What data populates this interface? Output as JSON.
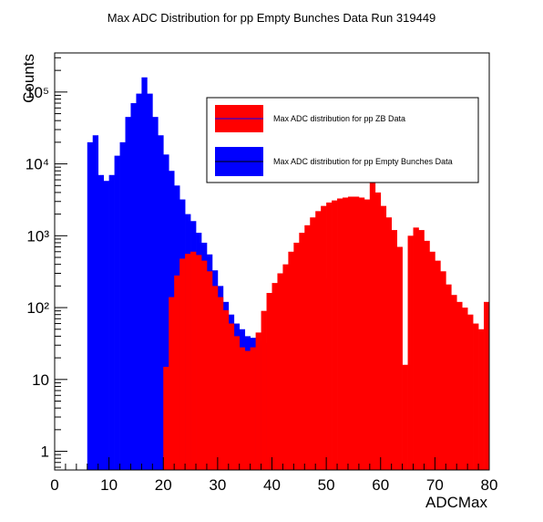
{
  "chart_data": {
    "type": "bar",
    "title": "Max ADC Distribution for pp Empty Bunches Data Run 319449",
    "xlabel": "ADCMax",
    "ylabel": "Counts",
    "xlim": [
      0,
      80
    ],
    "ylim": [
      0.55,
      350000
    ],
    "yscale": "log",
    "grid": false,
    "legend_position": "top-right",
    "x_ticks": [
      0,
      10,
      20,
      30,
      40,
      50,
      60,
      70,
      80
    ],
    "x_tick_labels": [
      "0",
      "10",
      "20",
      "30",
      "40",
      "50",
      "60",
      "70",
      "80"
    ],
    "y_ticks": [
      1,
      10,
      100,
      1000,
      10000,
      100000
    ],
    "y_tick_labels": [
      "1",
      "10",
      "10²",
      "10³",
      "10⁴",
      "10⁵"
    ],
    "bin_width": 1,
    "series": [
      {
        "name": "Max ADC distribution for pp ZB Data",
        "color": "#ff0000",
        "bins_start": 20,
        "values": [
          15,
          140,
          280,
          480,
          560,
          600,
          540,
          450,
          320,
          200,
          140,
          92,
          60,
          40,
          28,
          25,
          28,
          45,
          90,
          160,
          220,
          300,
          400,
          600,
          800,
          1100,
          1400,
          1800,
          2200,
          2600,
          2900,
          3100,
          3300,
          3400,
          3500,
          3500,
          3400,
          3200,
          5500,
          4000,
          2600,
          1800,
          1200,
          700,
          16,
          1000,
          1300,
          1200,
          850,
          600,
          450,
          320,
          210,
          150,
          120,
          100,
          80,
          60,
          50,
          120
        ]
      },
      {
        "name": "Max ADC distribution for pp Empty Bunches Data",
        "color": "#0000ff",
        "bins_start": 6,
        "values": [
          20000,
          25000,
          7000,
          5800,
          7000,
          13000,
          20000,
          45000,
          70000,
          95000,
          160000,
          95000,
          45000,
          25000,
          13500,
          8000,
          5000,
          3200,
          2000,
          1600,
          1100,
          800,
          550,
          330,
          200,
          120,
          80,
          60,
          50,
          40,
          38,
          35,
          30,
          32,
          28,
          30,
          32,
          40,
          55,
          70,
          90,
          130,
          200,
          250
        ]
      }
    ]
  }
}
